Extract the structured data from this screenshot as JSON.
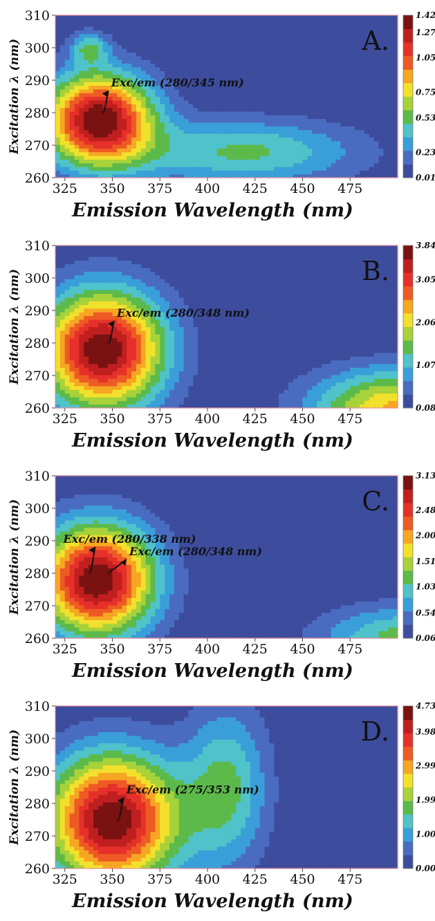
{
  "chart_data": [
    {
      "type": "heatmap",
      "panel_label": "A.",
      "xlabel": "Emission Wavelength (nm)",
      "ylabel": "Excitation λ (nm)",
      "xlim": [
        320,
        500
      ],
      "ylim": [
        260,
        310
      ],
      "xticks": [
        325,
        350,
        375,
        400,
        425,
        450,
        475
      ],
      "yticks": [
        260,
        270,
        280,
        290,
        300,
        310
      ],
      "colorbar_ticks": [
        0.01,
        0.23,
        0.53,
        0.75,
        1.05,
        1.27,
        1.42
      ],
      "zmax": 1.42,
      "peaks": [
        {
          "x": 345,
          "y": 280
        }
      ],
      "annotations": [
        {
          "text": "Exc/em (280/345 nm)",
          "x": 345,
          "y": 280
        }
      ]
    },
    {
      "type": "heatmap",
      "panel_label": "B.",
      "xlabel": "Emission Wavelength (nm)",
      "ylabel": "Excitation λ (nm)",
      "xlim": [
        320,
        500
      ],
      "ylim": [
        260,
        310
      ],
      "xticks": [
        325,
        350,
        375,
        400,
        425,
        450,
        475
      ],
      "yticks": [
        260,
        270,
        280,
        290,
        300,
        310
      ],
      "colorbar_ticks": [
        0.08,
        1.07,
        2.06,
        3.05,
        3.84
      ],
      "zmax": 3.84,
      "peaks": [
        {
          "x": 348,
          "y": 280
        }
      ],
      "annotations": [
        {
          "text": "Exc/em (280/348 nm)",
          "x": 348,
          "y": 280
        }
      ]
    },
    {
      "type": "heatmap",
      "panel_label": "C.",
      "xlabel": "Emission Wavelength (nm)",
      "ylabel": "Excitation λ (nm)",
      "xlim": [
        320,
        500
      ],
      "ylim": [
        260,
        310
      ],
      "xticks": [
        325,
        350,
        375,
        400,
        425,
        450,
        475
      ],
      "yticks": [
        260,
        270,
        280,
        290,
        300,
        310
      ],
      "colorbar_ticks": [
        0.06,
        0.54,
        1.03,
        1.51,
        2.0,
        2.48,
        3.13
      ],
      "zmax": 3.13,
      "peaks": [
        {
          "x": 338,
          "y": 280
        },
        {
          "x": 348,
          "y": 280
        }
      ],
      "annotations": [
        {
          "text": "Exc/em (280/338 nm)",
          "x": 338,
          "y": 280
        },
        {
          "text": "Exc/em (280/348 nm)",
          "x": 348,
          "y": 280
        }
      ]
    },
    {
      "type": "heatmap",
      "panel_label": "D.",
      "xlabel": "Emission Wavelength (nm)",
      "ylabel": "Excitation λ (nm)",
      "xlim": [
        320,
        500
      ],
      "ylim": [
        260,
        310
      ],
      "xticks": [
        325,
        350,
        375,
        400,
        425,
        450,
        475
      ],
      "yticks": [
        260,
        270,
        280,
        290,
        300,
        310
      ],
      "colorbar_ticks": [
        0.0,
        1.0,
        1.99,
        2.99,
        3.98,
        4.73
      ],
      "zmax": 4.73,
      "peaks": [
        {
          "x": 353,
          "y": 275
        }
      ],
      "annotations": [
        {
          "text": "Exc/em (275/353 nm)",
          "x": 353,
          "y": 275
        }
      ]
    }
  ],
  "colormap": [
    "#3d4c9c",
    "#4a6cc0",
    "#3a9fd8",
    "#4fc3c9",
    "#5cba4a",
    "#a8d23a",
    "#f2e12c",
    "#f6a623",
    "#ee5a24",
    "#e5312a",
    "#c01f1f",
    "#7a1212"
  ]
}
